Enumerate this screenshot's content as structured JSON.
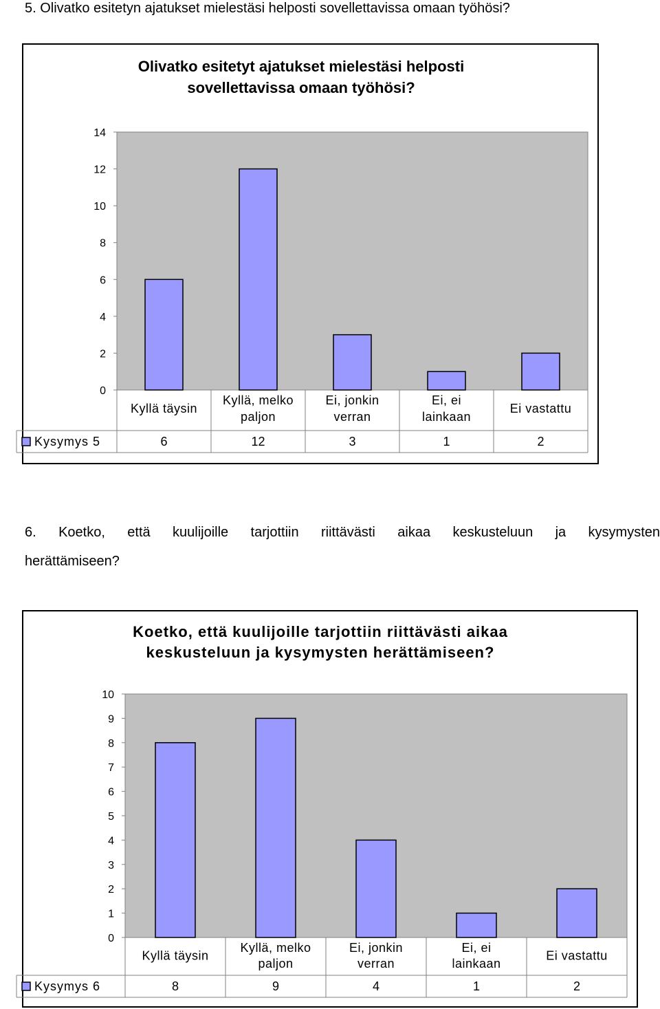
{
  "questions": {
    "q5": "5. Olivatko esitetyn ajatukset mielestäsi helposti sovellettavissa omaan työhösi?",
    "q6_line1": "6. Koetko, että kuulijoille tarjottiin riittävästi aikaa keskusteluun ja kysymysten",
    "q6_line2": "herättämiseen?"
  },
  "chart_data": [
    {
      "type": "bar",
      "title": [
        "Olivatko esitetyt ajatukset mielestäsi helposti",
        "sovellettavissa omaan työhösi?"
      ],
      "categories": [
        [
          "Kyllä täysin"
        ],
        [
          "Kyllä, melko",
          "paljon"
        ],
        [
          "Ei, jonkin",
          "verran"
        ],
        [
          "Ei, ei",
          "lainkaan"
        ],
        [
          "Ei vastattu"
        ]
      ],
      "series": [
        {
          "name": "Kysymys 5",
          "values": [
            6,
            12,
            3,
            1,
            2
          ]
        }
      ],
      "ylim": [
        0,
        14
      ],
      "yticks": [
        0,
        2,
        4,
        6,
        8,
        10,
        12,
        14
      ],
      "grid": false,
      "legend": "data-table",
      "colors": {
        "bar": "#9999FF",
        "plot_bg": "#C0C0C0",
        "outline": "#000000"
      }
    },
    {
      "type": "bar",
      "title": [
        "Koetko, että kuulijoille tarjottiin riittävästi aikaa",
        "keskusteluun ja kysymysten herättämiseen?"
      ],
      "categories": [
        [
          "Kyllä täysin"
        ],
        [
          "Kyllä, melko",
          "paljon"
        ],
        [
          "Ei, jonkin",
          "verran"
        ],
        [
          "Ei, ei",
          "lainkaan"
        ],
        [
          "Ei vastattu"
        ]
      ],
      "series": [
        {
          "name": "Kysymys 6",
          "values": [
            8,
            9,
            4,
            1,
            2
          ]
        }
      ],
      "ylim": [
        0,
        10
      ],
      "yticks": [
        0,
        1,
        2,
        3,
        4,
        5,
        6,
        7,
        8,
        9,
        10
      ],
      "grid": false,
      "legend": "data-table",
      "colors": {
        "bar": "#9999FF",
        "plot_bg": "#C0C0C0",
        "outline": "#000000"
      }
    }
  ]
}
